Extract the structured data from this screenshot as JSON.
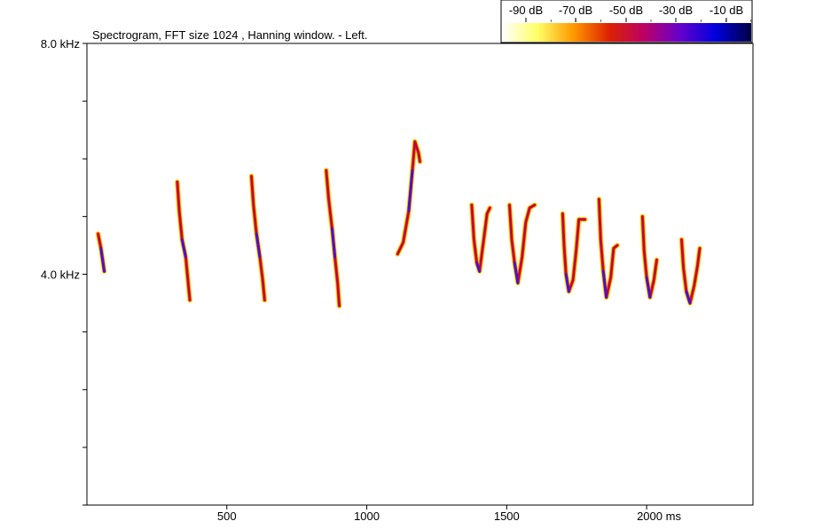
{
  "chart_data": {
    "type": "heatmap",
    "title": "Spectrogram, FFT size 1024 , Hanning window. - Left.",
    "x_axis": {
      "unit": "ms",
      "range": [
        0,
        2380
      ],
      "tick_values": [
        500,
        1000,
        1500,
        2000
      ],
      "tick_labels": [
        "500",
        "1000",
        "1500",
        "2000 ms"
      ]
    },
    "y_axis": {
      "unit": "kHz",
      "range": [
        0,
        8
      ],
      "tick_values": [
        0,
        1,
        2,
        3,
        4,
        5,
        6,
        7,
        8
      ],
      "labeled_ticks": [
        {
          "value": 8,
          "label": "8.0 kHz"
        },
        {
          "value": 4,
          "label": "4.0 kHz"
        }
      ]
    },
    "color_scale": {
      "labels": [
        "-90 dB",
        "-70 dB",
        "-50 dB",
        "-30 dB",
        "-10 dB"
      ],
      "values_db": [
        -90,
        -70,
        -50,
        -30,
        -10
      ],
      "colors": [
        "#ffffff",
        "#ffff66",
        "#ff9900",
        "#dd2200",
        "#bb0066",
        "#6600cc",
        "#0000dd",
        "#000044"
      ]
    },
    "calls": [
      {
        "name": "call-1",
        "points": [
          [
            40,
            4.7
          ],
          [
            50,
            4.45
          ],
          [
            62,
            4.05
          ]
        ]
      },
      {
        "name": "call-2",
        "points": [
          [
            323,
            5.6
          ],
          [
            330,
            5.1
          ],
          [
            340,
            4.6
          ],
          [
            353,
            4.3
          ],
          [
            363,
            3.8
          ],
          [
            368,
            3.55
          ]
        ]
      },
      {
        "name": "call-3",
        "points": [
          [
            588,
            5.7
          ],
          [
            595,
            5.2
          ],
          [
            606,
            4.7
          ],
          [
            618,
            4.3
          ],
          [
            628,
            3.9
          ],
          [
            635,
            3.55
          ]
        ]
      },
      {
        "name": "call-4",
        "points": [
          [
            855,
            5.8
          ],
          [
            864,
            5.3
          ],
          [
            876,
            4.8
          ],
          [
            886,
            4.3
          ],
          [
            896,
            3.85
          ],
          [
            902,
            3.45
          ]
        ]
      },
      {
        "name": "call-5",
        "points": [
          [
            1110,
            4.35
          ],
          [
            1130,
            4.55
          ],
          [
            1150,
            5.1
          ],
          [
            1163,
            5.8
          ],
          [
            1172,
            6.3
          ],
          [
            1185,
            6.1
          ],
          [
            1190,
            5.95
          ]
        ]
      },
      {
        "name": "call-6",
        "points": [
          [
            1375,
            5.2
          ],
          [
            1383,
            4.6
          ],
          [
            1393,
            4.2
          ],
          [
            1403,
            4.05
          ],
          [
            1418,
            4.6
          ],
          [
            1430,
            5.05
          ],
          [
            1440,
            5.15
          ]
        ]
      },
      {
        "name": "call-7",
        "points": [
          [
            1510,
            5.2
          ],
          [
            1518,
            4.6
          ],
          [
            1528,
            4.2
          ],
          [
            1540,
            3.85
          ],
          [
            1555,
            4.3
          ],
          [
            1568,
            4.9
          ],
          [
            1582,
            5.15
          ],
          [
            1600,
            5.2
          ]
        ]
      },
      {
        "name": "call-8",
        "points": [
          [
            1700,
            5.05
          ],
          [
            1705,
            4.5
          ],
          [
            1712,
            4.0
          ],
          [
            1722,
            3.7
          ],
          [
            1737,
            3.9
          ],
          [
            1748,
            4.4
          ],
          [
            1758,
            4.95
          ],
          [
            1780,
            4.95
          ]
        ]
      },
      {
        "name": "call-9",
        "points": [
          [
            1830,
            5.3
          ],
          [
            1836,
            4.6
          ],
          [
            1845,
            4.05
          ],
          [
            1856,
            3.6
          ],
          [
            1872,
            3.95
          ],
          [
            1882,
            4.45
          ],
          [
            1895,
            4.5
          ]
        ]
      },
      {
        "name": "call-10",
        "points": [
          [
            1985,
            5.0
          ],
          [
            1991,
            4.4
          ],
          [
            2000,
            3.95
          ],
          [
            2012,
            3.6
          ],
          [
            2026,
            3.9
          ],
          [
            2036,
            4.25
          ]
        ]
      },
      {
        "name": "call-11",
        "points": [
          [
            2125,
            4.6
          ],
          [
            2132,
            4.1
          ],
          [
            2142,
            3.7
          ],
          [
            2155,
            3.5
          ],
          [
            2170,
            3.8
          ],
          [
            2182,
            4.15
          ],
          [
            2190,
            4.45
          ]
        ]
      }
    ]
  }
}
